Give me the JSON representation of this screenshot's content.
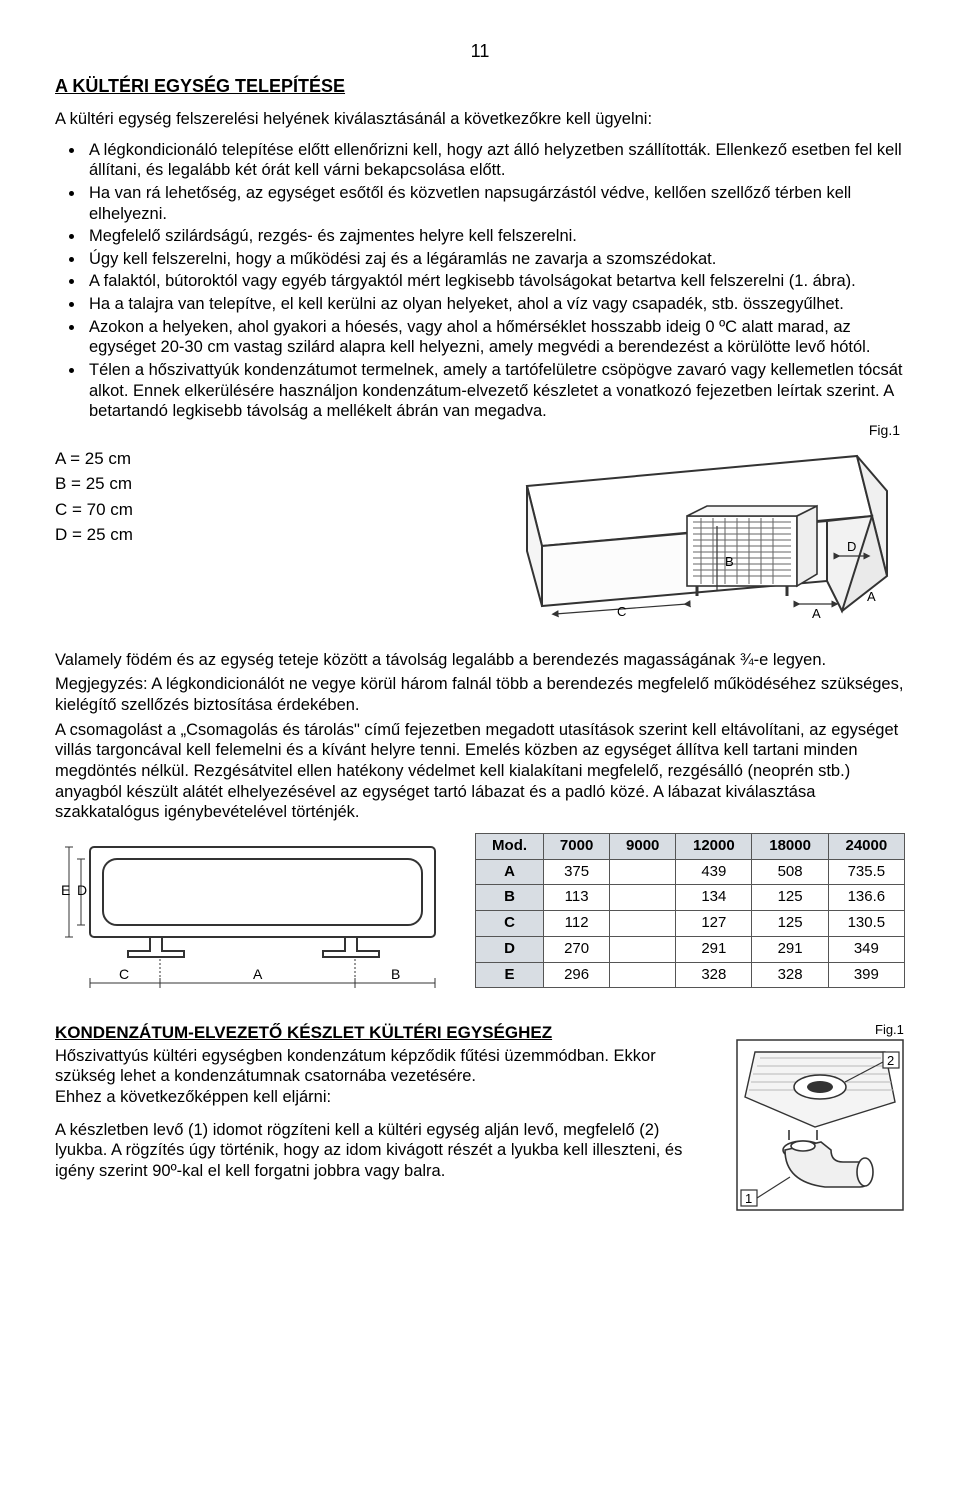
{
  "page_number": "11",
  "section_title": "A KÜLTÉRI EGYSÉG TELEPÍTÉSE",
  "intro_text": "A kültéri egység felszerelési helyének kiválasztásánál a következőkre kell ügyelni:",
  "bullets": [
    "A légkondicionáló telepítése előtt ellenőrizni kell, hogy azt álló helyzetben szállították. Ellenkező esetben fel kell állítani, és legalább két órát kell várni bekapcsolása előtt.",
    "Ha van rá lehetőség, az egységet esőtől és közvetlen napsugárzástól védve, kellően szellőző térben kell elhelyezni.",
    "Megfelelő szilárdságú, rezgés- és zajmentes helyre kell felszerelni.",
    "Úgy kell felszerelni, hogy a működési zaj és a légáramlás ne zavarja a szomszédokat.",
    "A falaktól, bútoroktól vagy egyéb tárgyaktól mért legkisebb távolságokat betartva kell felszerelni (1. ábra).",
    "Ha a talajra van telepítve, el kell kerülni az olyan helyeket, ahol a víz vagy csapadék, stb. összegyűlhet.",
    "Azokon a helyeken, ahol gyakori a hóesés, vagy ahol a hőmérséklet hosszabb ideig 0 ºC alatt marad, az egységet 20-30 cm vastag szilárd alapra kell helyezni, amely megvédi a berendezést a körülötte levő hótól.",
    "Télen a hőszivattyúk kondenzátumot termelnek, amely a tartófelületre csöpögve zavaró vagy kellemetlen tócsát alkot. Ennek elkerülésére használjon kondenzátum-elvezető készletet a vonatkozó fejezetben leírtak szerint. A betartandó legkisebb távolság a mellékelt ábrán van megadva."
  ],
  "fig1_label": "Fig.1",
  "clearance": {
    "lines": [
      "A = 25 cm",
      "B = 25 cm",
      "C = 70 cm",
      "D = 25 cm"
    ],
    "labels": {
      "A": "A",
      "B": "B",
      "C": "C",
      "D": "D"
    }
  },
  "para2": "Valamely födém és az egység teteje között a távolság legalább a berendezés magasságának ¾-e legyen.",
  "para3": "Megjegyzés: A légkondicionálót ne vegye körül három falnál több a berendezés megfelelő működéséhez szükséges, kielégítő szellőzés biztosítása érdekében.",
  "para4": "A csomagolást a „Csomagolás és tárolás\" című fejezetben megadott utasítások szerint kell eltávolítani, az egységet villás targoncával kell felemelni és a kívánt helyre tenni. Emelés közben az egységet állítva kell tartani minden megdöntés nélkül. Rezgésátvitel ellen hatékony védelmet kell kialakítani megfelelő, rezgésálló (neoprén stb.) anyagból készült alátét elhelyezésével az egységet tartó lábazat és a padló közé. A lábazat kiválasztása szakkatalógus igénybevételével történjék.",
  "base_drawing_labels": {
    "E": "E",
    "D": "D",
    "C": "C",
    "A": "A",
    "B": "B"
  },
  "spec_table": {
    "header_mod": "Mod.",
    "columns": [
      "7000",
      "9000",
      "12000",
      "18000",
      "24000"
    ],
    "rows": [
      {
        "label": "A",
        "cells": [
          "375",
          "",
          "439",
          "508",
          "735.5"
        ]
      },
      {
        "label": "B",
        "cells": [
          "113",
          "",
          "134",
          "125",
          "136.6"
        ]
      },
      {
        "label": "C",
        "cells": [
          "112",
          "",
          "127",
          "125",
          "130.5"
        ]
      },
      {
        "label": "D",
        "cells": [
          "270",
          "",
          "291",
          "291",
          "349"
        ]
      },
      {
        "label": "E",
        "cells": [
          "296",
          "",
          "328",
          "328",
          "399"
        ]
      }
    ],
    "header_bg": "#d8dde3",
    "border_color": "#555555"
  },
  "cond_title": "KONDENZÁTUM-ELVEZETŐ KÉSZLET KÜLTÉRI EGYSÉGHEZ",
  "cond_p1": "Hőszivattyús kültéri egységben kondenzátum képződik fűtési üzemmódban. Ekkor szükség lehet a kondenzátumnak csatornába vezetésére.",
  "cond_p2": "Ehhez a következőképpen kell eljárni:",
  "cond_p3": "A készletben levő (1) idomot rögzíteni kell a kültéri egység alján levő, megfelelő (2) lyukba. A rögzítés úgy történik, hogy az idom kivágott részét a lyukba kell illeszteni, és igény szerint 90º-kal el kell forgatni jobbra vagy balra.",
  "fig2_label": "Fig.1",
  "fig2_num1": "1",
  "fig2_num2": "2",
  "colors": {
    "line": "#333333",
    "grille": "#666666",
    "light_fill": "#ffffff",
    "hatch": "#b8b8b8"
  }
}
